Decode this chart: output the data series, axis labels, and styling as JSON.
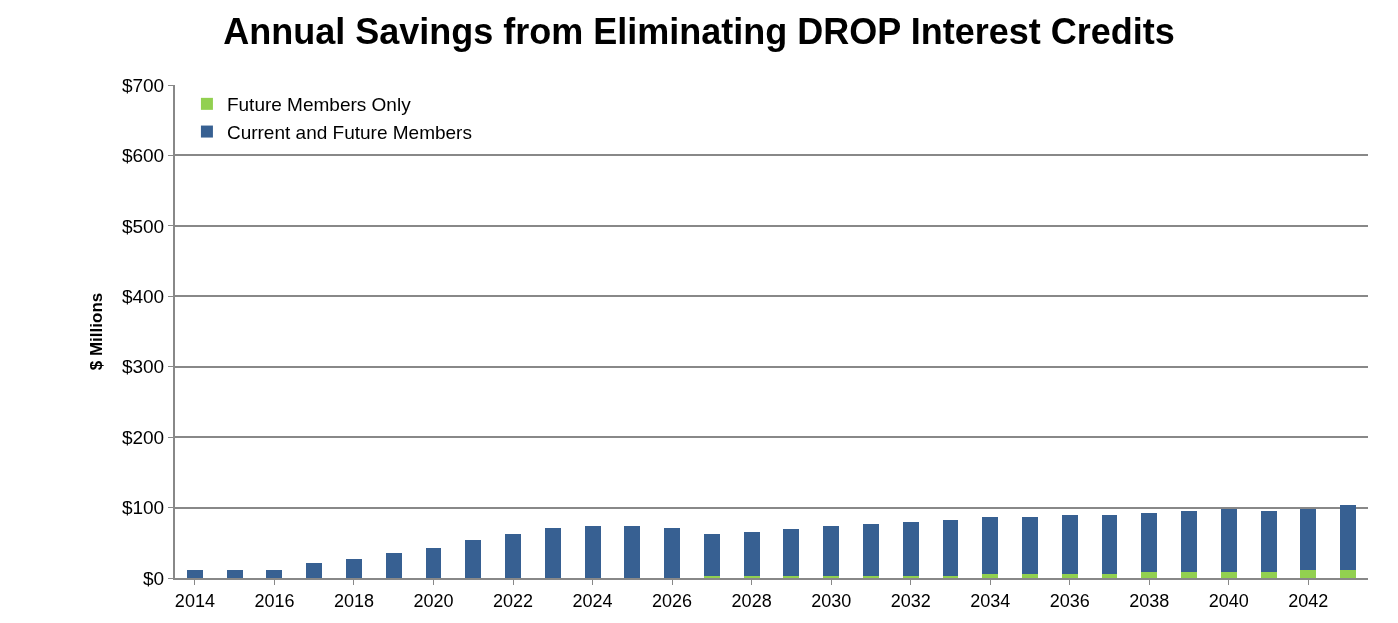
{
  "chart_data": {
    "type": "bar",
    "title": "Annual Savings from Eliminating DROP Interest Credits",
    "ylabel": "$ Millions",
    "categories": [
      "2014",
      null,
      "2016",
      null,
      "2018",
      null,
      "2020",
      null,
      "2022",
      null,
      "2024",
      null,
      "2026",
      null,
      "2028",
      null,
      "2030",
      null,
      "2032",
      null,
      "2034",
      null,
      "2036",
      null,
      "2038",
      null,
      "2040",
      null,
      "2042",
      null
    ],
    "stacked": true,
    "series": [
      {
        "name": "Future Members Only",
        "color": "#92d050",
        "values": [
          0,
          0,
          0,
          0,
          0,
          0,
          0,
          0,
          0,
          0,
          0,
          0,
          0,
          3,
          3,
          3,
          3,
          3,
          3,
          3,
          6,
          6,
          6,
          6,
          9,
          9,
          9,
          9,
          12,
          12
        ]
      },
      {
        "name": "Current and Future Members",
        "color": "#376092",
        "values": [
          12,
          12,
          12,
          21,
          27,
          36,
          42,
          54,
          63,
          71,
          74,
          74,
          71,
          60,
          63,
          66,
          71,
          74,
          77,
          80,
          80,
          80,
          83,
          83,
          83,
          86,
          89,
          86,
          86,
          92
        ]
      }
    ],
    "ylim": [
      0,
      700
    ],
    "yticks": [
      {
        "value": 0,
        "label": "$0"
      },
      {
        "value": 100,
        "label": "$100"
      },
      {
        "value": 200,
        "label": "$200"
      },
      {
        "value": 300,
        "label": "$300"
      },
      {
        "value": 400,
        "label": "$400"
      },
      {
        "value": 500,
        "label": "$500"
      },
      {
        "value": 600,
        "label": "$600"
      },
      {
        "value": 700,
        "label": "$700"
      }
    ],
    "grid": "y",
    "legend": "top left"
  }
}
